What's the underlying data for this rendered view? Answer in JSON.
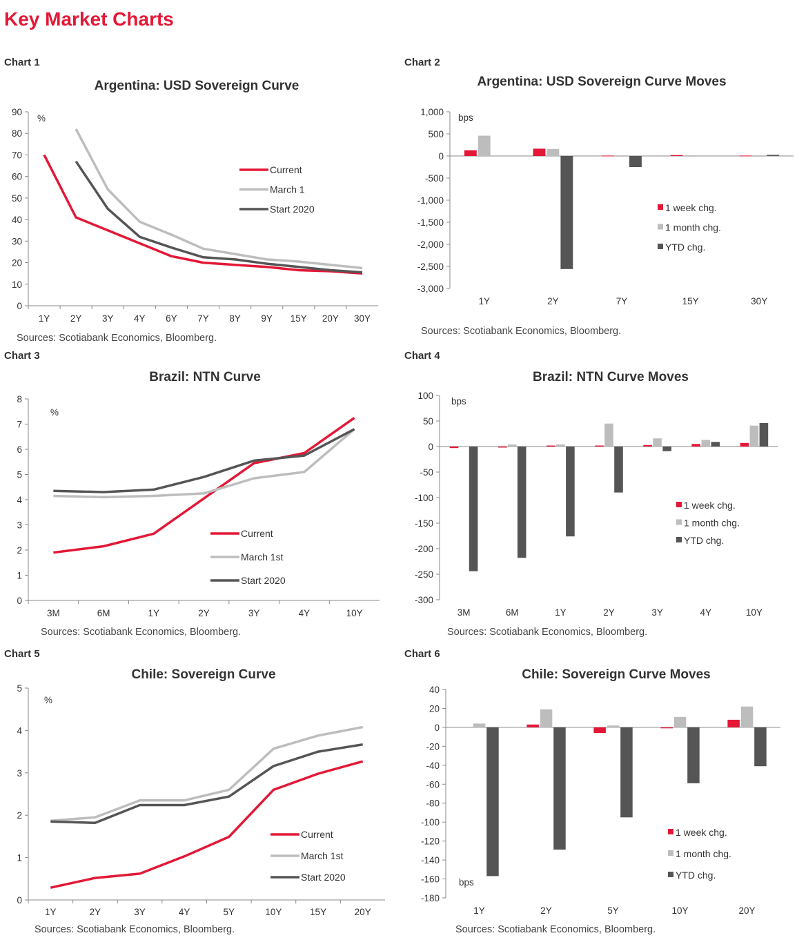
{
  "page": {
    "title": "Key Market Charts"
  },
  "colors": {
    "current": "#e31837",
    "march": "#bdbdbd",
    "start": "#555555"
  },
  "chart_data": [
    {
      "id": "chart1",
      "label": "Chart 1",
      "type": "line",
      "title": "Argentina: USD Sovereign Curve",
      "unit": "%",
      "categories": [
        "1Y",
        "2Y",
        "3Y",
        "4Y",
        "6Y",
        "7Y",
        "8Y",
        "9Y",
        "15Y",
        "20Y",
        "30Y"
      ],
      "ylim": [
        0,
        90
      ],
      "yticks": [
        "0",
        "10",
        "20",
        "30",
        "40",
        "50",
        "60",
        "70",
        "80",
        "90"
      ],
      "series": [
        {
          "name": "Current",
          "color": "#e31837",
          "values": [
            70,
            41,
            35,
            29,
            23,
            20,
            19,
            18,
            16.5,
            16,
            15
          ]
        },
        {
          "name": "March 1",
          "color": "#bdbdbd",
          "values": [
            null,
            82,
            54,
            39,
            33,
            26.5,
            24,
            21.5,
            20.5,
            19,
            17.5
          ]
        },
        {
          "name": "Start 2020",
          "color": "#555555",
          "values": [
            null,
            67,
            45,
            32,
            27,
            22.5,
            21.5,
            19.5,
            18,
            16.5,
            15.5
          ]
        }
      ],
      "source": "Sources: Scotiabank Economics, Bloomberg."
    },
    {
      "id": "chart2",
      "label": "Chart 2",
      "type": "bar",
      "title": "Argentina: USD Sovereign Curve Moves",
      "unit": "bps",
      "categories": [
        "1Y",
        "2Y",
        "7Y",
        "15Y",
        "30Y"
      ],
      "ylim": [
        -3000,
        1000
      ],
      "yticks": [
        "-3,000",
        "-2,500",
        "-2,000",
        "-1,500",
        "-1,000",
        "-500",
        "0",
        "500",
        "1,000"
      ],
      "series": [
        {
          "name": "1 week chg.",
          "color": "#e31837",
          "values": [
            130,
            165,
            10,
            20,
            10
          ]
        },
        {
          "name": "1 month chg.",
          "color": "#bdbdbd",
          "values": [
            460,
            160,
            -10,
            15,
            -10
          ]
        },
        {
          "name": "YTD chg.",
          "color": "#555555",
          "values": [
            0,
            -2560,
            -250,
            0,
            25
          ]
        }
      ],
      "source": "Sources: Scotiabank Economics, Bloomberg."
    },
    {
      "id": "chart3",
      "label": "Chart 3",
      "type": "line",
      "title": "Brazil: NTN Curve",
      "unit": "%",
      "categories": [
        "3M",
        "6M",
        "1Y",
        "2Y",
        "3Y",
        "4Y",
        "10Y"
      ],
      "ylim": [
        0,
        8
      ],
      "yticks": [
        "0",
        "1",
        "2",
        "3",
        "4",
        "5",
        "6",
        "7",
        "8"
      ],
      "series": [
        {
          "name": "Current",
          "color": "#e31837",
          "values": [
            1.9,
            2.15,
            2.65,
            4.05,
            5.45,
            5.85,
            7.25
          ]
        },
        {
          "name": "March 1st",
          "color": "#bdbdbd",
          "values": [
            4.15,
            4.1,
            4.15,
            4.25,
            4.85,
            5.1,
            6.8
          ]
        },
        {
          "name": "Start 2020",
          "color": "#555555",
          "values": [
            4.35,
            4.3,
            4.4,
            4.9,
            5.55,
            5.75,
            6.8
          ]
        }
      ],
      "source": "Sources: Scotiabank Economics, Bloomberg."
    },
    {
      "id": "chart4",
      "label": "Chart 4",
      "type": "bar",
      "title": "Brazil: NTN Curve Moves",
      "unit": "bps",
      "categories": [
        "3M",
        "6M",
        "1Y",
        "2Y",
        "3Y",
        "4Y",
        "10Y"
      ],
      "ylim": [
        -300,
        100
      ],
      "yticks": [
        "-300",
        "-250",
        "-200",
        "-150",
        "-100",
        "-50",
        "0",
        "50",
        "100"
      ],
      "series": [
        {
          "name": "1 week chg.",
          "color": "#e31837",
          "values": [
            -3,
            -2,
            2,
            2,
            3,
            5,
            7
          ]
        },
        {
          "name": "1 month chg.",
          "color": "#bdbdbd",
          "values": [
            0,
            4,
            4,
            45,
            16,
            13,
            41
          ]
        },
        {
          "name": "YTD chg.",
          "color": "#555555",
          "values": [
            -244,
            -218,
            -176,
            -90,
            -9,
            9,
            46
          ]
        }
      ],
      "source": "Sources: Scotiabank Economics, Bloomberg."
    },
    {
      "id": "chart5",
      "label": "Chart 5",
      "type": "line",
      "title": "Chile: Sovereign Curve",
      "unit": "%",
      "categories": [
        "1Y",
        "2Y",
        "3Y",
        "4Y",
        "5Y",
        "10Y",
        "15Y",
        "20Y"
      ],
      "ylim": [
        0,
        5
      ],
      "yticks": [
        "0",
        "1",
        "2",
        "3",
        "4",
        "5"
      ],
      "series": [
        {
          "name": "Current",
          "color": "#e31837",
          "values": [
            0.29,
            0.52,
            0.62,
            1.03,
            1.49,
            2.6,
            2.98,
            3.27
          ]
        },
        {
          "name": "March 1st",
          "color": "#bdbdbd",
          "values": [
            1.87,
            1.95,
            2.35,
            2.35,
            2.6,
            3.57,
            3.88,
            4.08
          ]
        },
        {
          "name": "Start 2020",
          "color": "#555555",
          "values": [
            1.85,
            1.82,
            2.24,
            2.24,
            2.44,
            3.16,
            3.5,
            3.67
          ]
        }
      ],
      "source": "Sources: Scotiabank Economics, Bloomberg."
    },
    {
      "id": "chart6",
      "label": "Chart 6",
      "type": "bar",
      "title": "Chile: Sovereign Curve Moves",
      "unit": "bps",
      "categories": [
        "1Y",
        "2Y",
        "5Y",
        "10Y",
        "20Y"
      ],
      "ylim": [
        -180,
        40
      ],
      "yticks": [
        "-180",
        "-160",
        "-140",
        "-120",
        "-100",
        "-80",
        "-60",
        "-40",
        "-20",
        "0",
        "20",
        "40"
      ],
      "series": [
        {
          "name": "1 week chg.",
          "color": "#e31837",
          "values": [
            0,
            3,
            -6,
            -1,
            8
          ]
        },
        {
          "name": "1 month chg.",
          "color": "#bdbdbd",
          "values": [
            4,
            19,
            2,
            11,
            22
          ]
        },
        {
          "name": "YTD chg.",
          "color": "#555555",
          "values": [
            -157,
            -129,
            -95,
            -59,
            -41
          ]
        }
      ],
      "source": "Sources: Scotiabank Economics, Bloomberg."
    }
  ]
}
